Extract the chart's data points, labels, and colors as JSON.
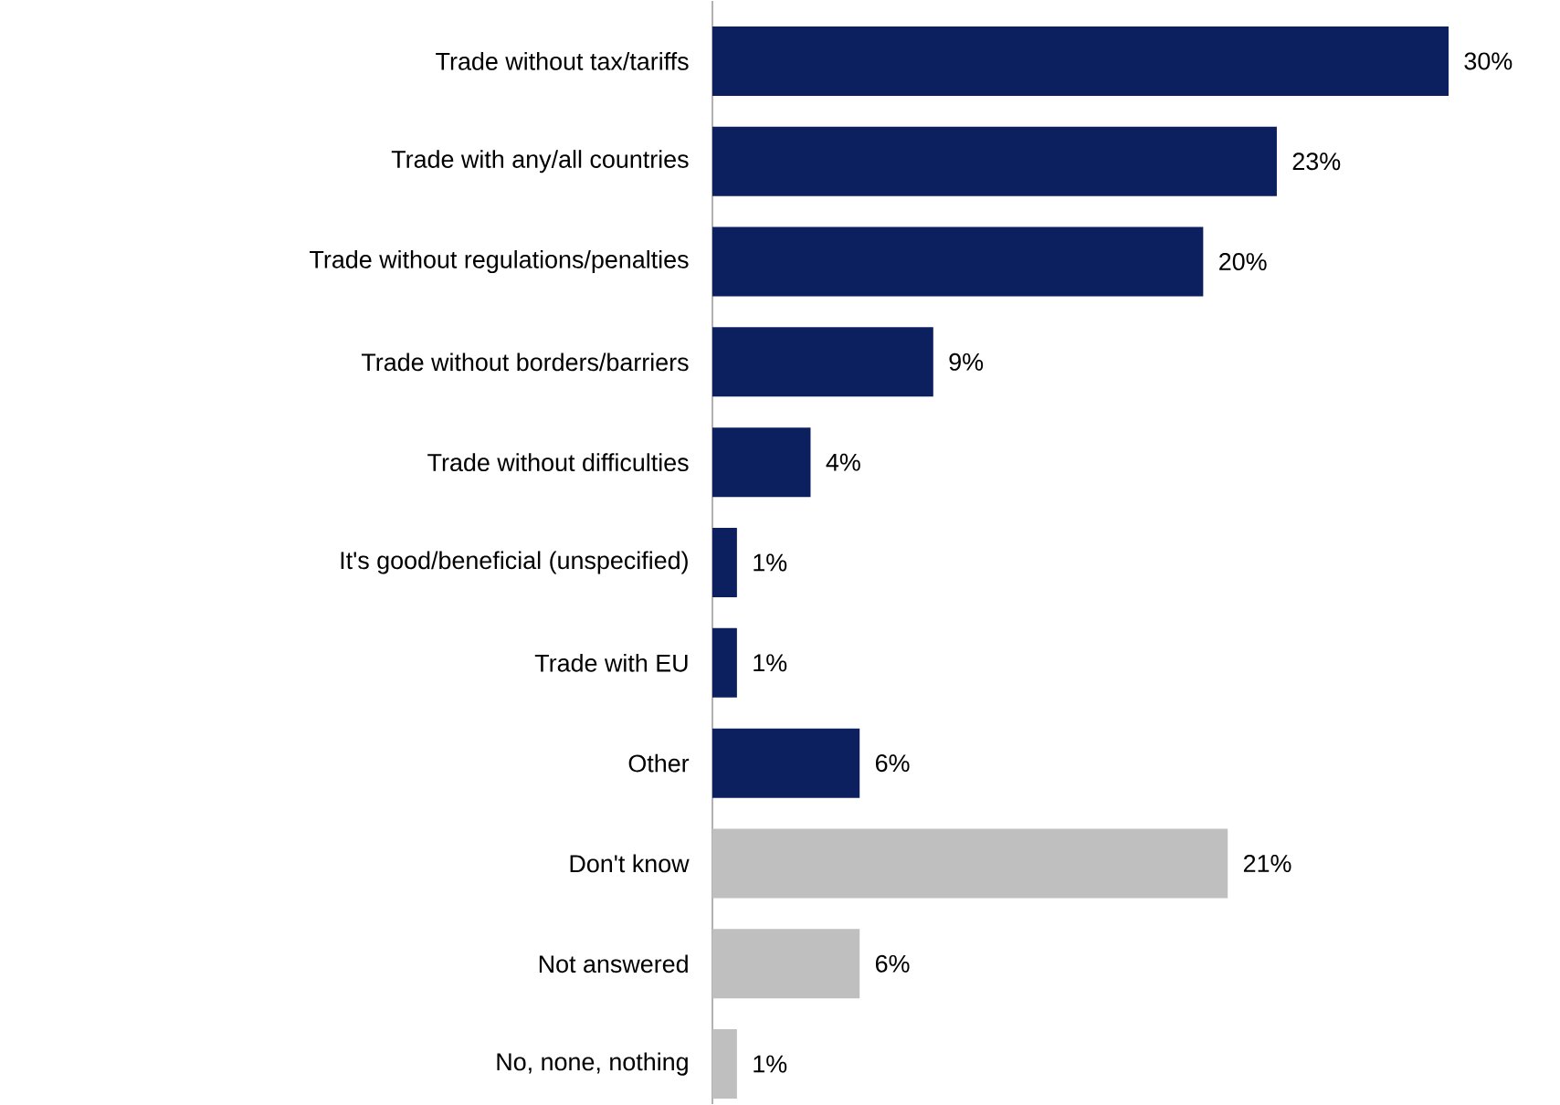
{
  "chart_data": {
    "type": "bar",
    "orientation": "horizontal",
    "categories": [
      "Trade without tax/tariffs",
      "Trade with any/all countries",
      "Trade without regulations/penalties",
      "Trade without borders/barriers",
      "Trade without difficulties",
      "It's good/beneficial (unspecified)",
      "Trade with EU",
      "Other",
      "Don't know",
      "Not answered",
      "No, none, nothing"
    ],
    "values": [
      30,
      23,
      20,
      9,
      4,
      1,
      1,
      6,
      21,
      6,
      1
    ],
    "value_labels": [
      "30%",
      "23%",
      "20%",
      "9%",
      "4%",
      "1%",
      "1%",
      "6%",
      "21%",
      "6%",
      "1%"
    ],
    "colors": [
      "#0c2060",
      "#0c2060",
      "#0c2060",
      "#0c2060",
      "#0c2060",
      "#0c2060",
      "#0c2060",
      "#0c2060",
      "#bfbfbf",
      "#bfbfbf",
      "#bfbfbf"
    ]
  }
}
